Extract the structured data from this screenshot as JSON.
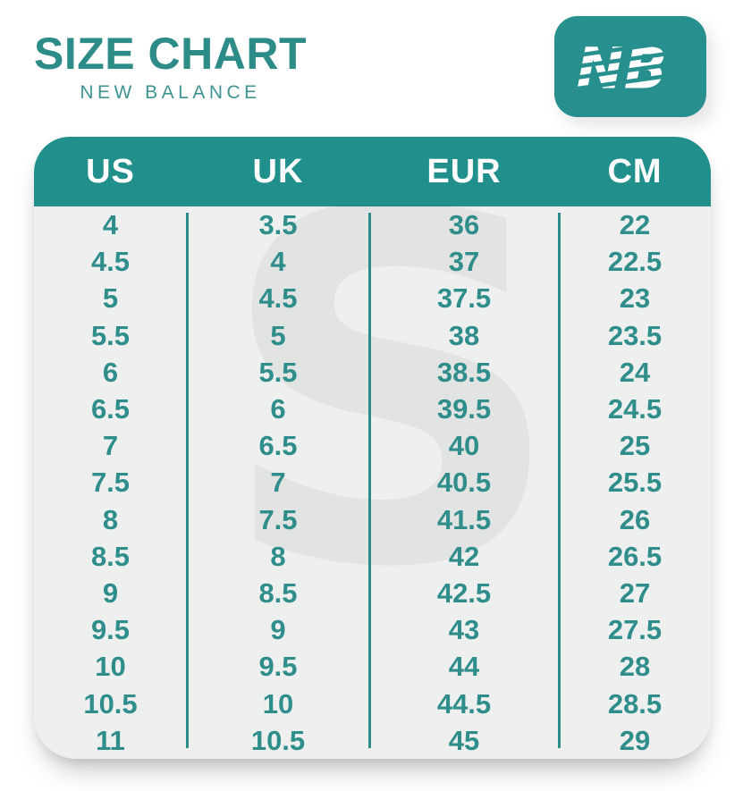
{
  "header": {
    "title": "SIZE CHART",
    "subtitle": "NEW BALANCE"
  },
  "logo": {
    "name": "New Balance",
    "monogram": "NB"
  },
  "watermark": {
    "glyph": "S"
  },
  "chart_data": {
    "type": "table",
    "title": "SIZE CHART",
    "subtitle": "NEW BALANCE",
    "columns": [
      "US",
      "UK",
      "EUR",
      "CM"
    ],
    "rows": [
      [
        "4",
        "3.5",
        "36",
        "22"
      ],
      [
        "4.5",
        "4",
        "37",
        "22.5"
      ],
      [
        "5",
        "4.5",
        "37.5",
        "23"
      ],
      [
        "5.5",
        "5",
        "38",
        "23.5"
      ],
      [
        "6",
        "5.5",
        "38.5",
        "24"
      ],
      [
        "6.5",
        "6",
        "39.5",
        "24.5"
      ],
      [
        "7",
        "6.5",
        "40",
        "25"
      ],
      [
        "7.5",
        "7",
        "40.5",
        "25.5"
      ],
      [
        "8",
        "7.5",
        "41.5",
        "26"
      ],
      [
        "8.5",
        "8",
        "42",
        "26.5"
      ],
      [
        "9",
        "8.5",
        "42.5",
        "27"
      ],
      [
        "9.5",
        "9",
        "43",
        "27.5"
      ],
      [
        "10",
        "9.5",
        "44",
        "28"
      ],
      [
        "10.5",
        "10",
        "44.5",
        "28.5"
      ],
      [
        "11",
        "10.5",
        "45",
        "29"
      ]
    ],
    "layout": {
      "grid": false,
      "column_dividers": true,
      "header_position": "top"
    }
  },
  "colors": {
    "header_teal": "#21908c",
    "logo_teal": "#278f8d",
    "title_teal": "#2d8b88",
    "number_teal": "#2f8e8b",
    "divider_teal": "#2b8c89",
    "body_background": "#eef0ef",
    "watermark_gray": "#e2e4e3",
    "header_text": "#ffffff",
    "page_background": "#ffffff"
  }
}
